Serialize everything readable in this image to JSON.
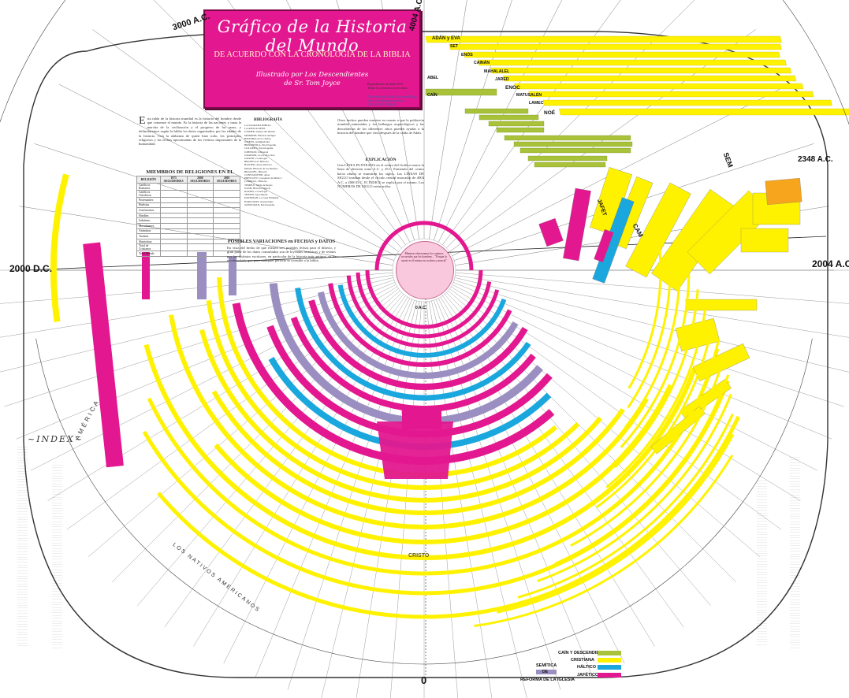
{
  "title": {
    "main": "Gráfico de la Historia del Mundo",
    "subtitle": "DE ACUERDO CON LA CRONOLOGÍA DE LA BIBLIA",
    "authors": "Illustrado por Los Descendientes de Sr. Tom Joyce"
  },
  "dates": {
    "top_left": "3000 A.C.",
    "top": "4004 A.C.",
    "right_top": "2348 A.C.",
    "right_mid": "2004 A.C.",
    "left_mid": "2000 D.C.",
    "center_bottom": "0",
    "inner": "0 A.C."
  },
  "sections": {
    "members_title": "MIEMBROS DE RELIGIONES EN EL MUNDO",
    "variations_title": "POSIBLES VARIACIONES en FECHAS y DATOS",
    "bibliography_title": "BIBLIOGRAFÍA",
    "explanation_title": "EXPLICACIÓN",
    "index_title": "~INDEX~",
    "america_label": "AMÉRICA",
    "natives_label": "LOS NATIVOS AMERICANOS",
    "cristo_label": "CRISTO",
    "sem_label": "SEM",
    "cam_label": "CAM",
    "jafet_label": "JAFET"
  },
  "table": {
    "headers": [
      "RELIGIÓN",
      "1975 SEGUIDORES",
      "2000 SEGUIDORES",
      "2005 SEGUIDORES"
    ],
    "rows": [
      [
        "Católicos Romanos",
        "",
        "",
        ""
      ],
      [
        "Católicos Ortodoxos",
        "",
        "",
        ""
      ],
      [
        "Protestantes",
        "",
        "",
        ""
      ],
      [
        "Budistas",
        "",
        "",
        ""
      ],
      [
        "Confucianos",
        "",
        "",
        ""
      ],
      [
        "Hindúes",
        "",
        "",
        ""
      ],
      [
        "Judaísmo",
        "",
        "",
        ""
      ],
      [
        "Musulmanes",
        "",
        "",
        ""
      ],
      [
        "Animistas",
        "",
        "",
        ""
      ],
      [
        "Taoístas",
        "",
        "",
        ""
      ],
      [
        "Shintoístas",
        "",
        "",
        ""
      ],
      [
        "Total de Cristianos",
        "",
        "",
        ""
      ],
      [
        "Total Mundo",
        "",
        "",
        ""
      ]
    ]
  },
  "patriarchs": [
    "ADÁN y EVA",
    "SET",
    "ENÓS",
    "CAINÁN",
    "MAHALALEL",
    "JARED",
    "ENOC",
    "MATUSALÉN",
    "LAMEC",
    "NOÉ",
    "CAÍN",
    "ABEL"
  ],
  "legend": {
    "items": [
      {
        "label": "CAÍN Y DESCENDIENTES",
        "color": "#a8c23a"
      },
      {
        "label": "CRISTIANA",
        "color": "#fff200"
      },
      {
        "label": "SEMÍTICA",
        "color": "#9b8fc2"
      },
      {
        "label": "HÁLTICO",
        "color": "#1aa7de"
      },
      {
        "label": "REFORMA DE LA IGLESIA",
        "color": "#000000"
      },
      {
        "label": "JAFÉTICO",
        "color": "#e3178f"
      }
    ],
    "group_label": "DE"
  },
  "center_note": "Mientras observamos los caminos recorridos por los hombres... \"Porque la suerte es él mismo en tu alma y mezcal\"",
  "colors": {
    "yellow": "#fff200",
    "magenta": "#e3178f",
    "purple": "#9b8fc2",
    "cyan": "#1aa7de",
    "green": "#a8c23a",
    "orange": "#f7a51c"
  }
}
